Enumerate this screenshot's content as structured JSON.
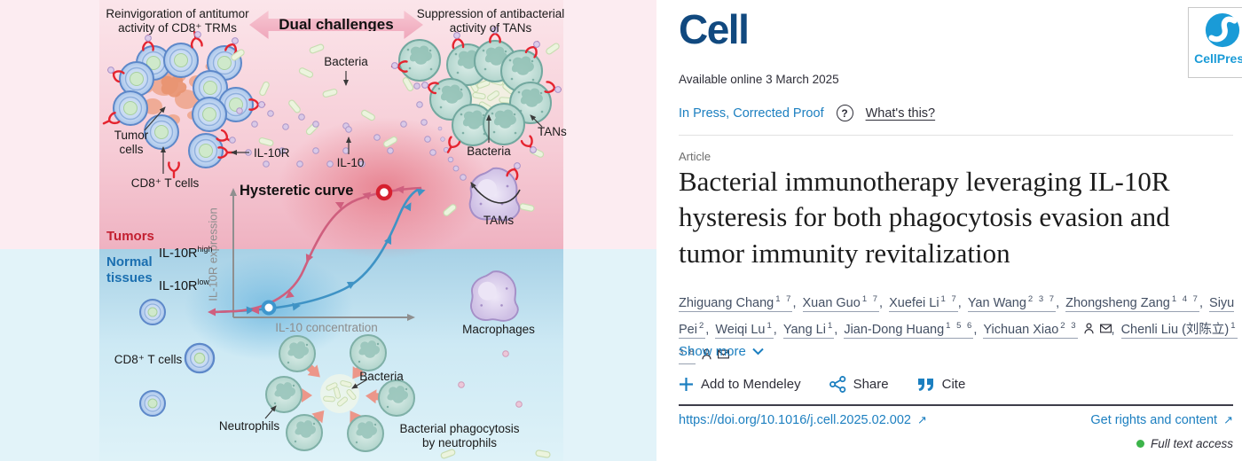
{
  "figure": {
    "reinvigoration": "Reinvigoration of antitumor\nactivity of CD8⁺ TRMs",
    "suppression": "Suppression of antibacterial\nactivity of TANs",
    "dual_challenges": "Dual challenges",
    "bacteria": "Bacteria",
    "tumor_cells": "Tumor\ncells",
    "cd8_t_cells": "CD8⁺ T cells",
    "il10r": "IL-10R",
    "il10": "IL-10",
    "tans": "TANs",
    "tams": "TAMs",
    "macrophages": "Macrophages",
    "neutrophils": "Neutrophils",
    "phagocytosis": "Bacterial phagocytosis\nby neutrophils",
    "plot": {
      "title": "Hysteretic curve",
      "xlabel": "IL-10 concentration",
      "ylabel": "IL-10R expression"
    },
    "tumors_label": "Tumors",
    "tumors_value": "IL-10R",
    "tumors_sup": "high",
    "normal_label": "Normal\ntissues",
    "normal_value": "IL-10R",
    "normal_sup": "low"
  },
  "chart_data": {
    "type": "line",
    "title": "Hysteretic curve",
    "xlabel": "IL-10 concentration",
    "ylabel": "IL-10R expression",
    "legend_position": "none",
    "grid": false,
    "xlim": [
      0,
      1
    ],
    "ylim": [
      0,
      1
    ],
    "series": [
      {
        "name": "increasing IL-10 (blue, arrows rightward/up)",
        "x": [
          0.0,
          0.2,
          0.35,
          0.5,
          0.65,
          0.8,
          0.9,
          1.0
        ],
        "y": [
          0.02,
          0.05,
          0.08,
          0.18,
          0.45,
          0.8,
          0.93,
          0.97
        ]
      },
      {
        "name": "decreasing IL-10 (pink, arrows leftward/down)",
        "x": [
          1.0,
          0.9,
          0.8,
          0.65,
          0.5,
          0.35,
          0.2,
          0.0
        ],
        "y": [
          0.97,
          0.96,
          0.93,
          0.85,
          0.6,
          0.25,
          0.08,
          0.02
        ]
      }
    ],
    "markers": [
      {
        "label": "high IL-10R state (tumors)",
        "x": 0.82,
        "y": 0.95,
        "color": "#d6202f"
      },
      {
        "label": "low IL-10R state (normal tissues)",
        "x": 0.19,
        "y": 0.05,
        "color": "#3e96cd"
      }
    ],
    "annotations": [
      "Tumors IL-10R high",
      "Normal tissues IL-10R low"
    ]
  },
  "header": {
    "journal": "Cell",
    "publisher": "CellPress",
    "available": "Available online 3 March 2025",
    "in_press": "In Press, Corrected Proof",
    "help": "?",
    "whats_this": "What's this?"
  },
  "article": {
    "type_label": "Article",
    "title": "Bacterial immunotherapy leveraging IL-10R hysteresis for both phagocytosis evasion and tumor immunity revitalization",
    "show_more": "Show more",
    "authors": [
      {
        "name": "Zhiguang Chang",
        "sup": "1 7",
        "person": false,
        "mail": false
      },
      {
        "name": "Xuan Guo",
        "sup": "1 7",
        "person": false,
        "mail": false
      },
      {
        "name": "Xuefei Li",
        "sup": "1 7",
        "person": false,
        "mail": false
      },
      {
        "name": "Yan Wang",
        "sup": "2 3 7",
        "person": false,
        "mail": false
      },
      {
        "name": "Zhongsheng Zang",
        "sup": "1 4 7",
        "person": false,
        "mail": false
      },
      {
        "name": "Siyu Pei",
        "sup": "2",
        "person": false,
        "mail": false
      },
      {
        "name": "Weiqi Lu",
        "sup": "1",
        "person": false,
        "mail": false
      },
      {
        "name": "Yang Li",
        "sup": "1",
        "person": false,
        "mail": false
      },
      {
        "name": "Jian-Dong Huang",
        "sup": "1 5 6",
        "person": false,
        "mail": false
      },
      {
        "name": "Yichuan Xiao",
        "sup": "2 3",
        "person": true,
        "mail": true
      },
      {
        "name": "Chenli Liu (刘陈立)",
        "sup": "1 3 8",
        "person": true,
        "mail": true
      }
    ]
  },
  "toolbar": {
    "mendeley": "Add to Mendeley",
    "share": "Share",
    "cite": "Cite"
  },
  "footer": {
    "doi": "https://doi.org/10.1016/j.cell.2025.02.002",
    "rights": "Get rights and content",
    "access": "Full text access"
  },
  "colors": {
    "link_blue": "#1c7fc0",
    "cell_logo": "#11497f",
    "cellpress_blue": "#1a9bd7",
    "tumor_red": "#c32031",
    "normal_blue": "#1b6fb0",
    "curve_pink": "#cf5f7e",
    "curve_blue": "#3f93c5",
    "access_green": "#3cb44a"
  }
}
